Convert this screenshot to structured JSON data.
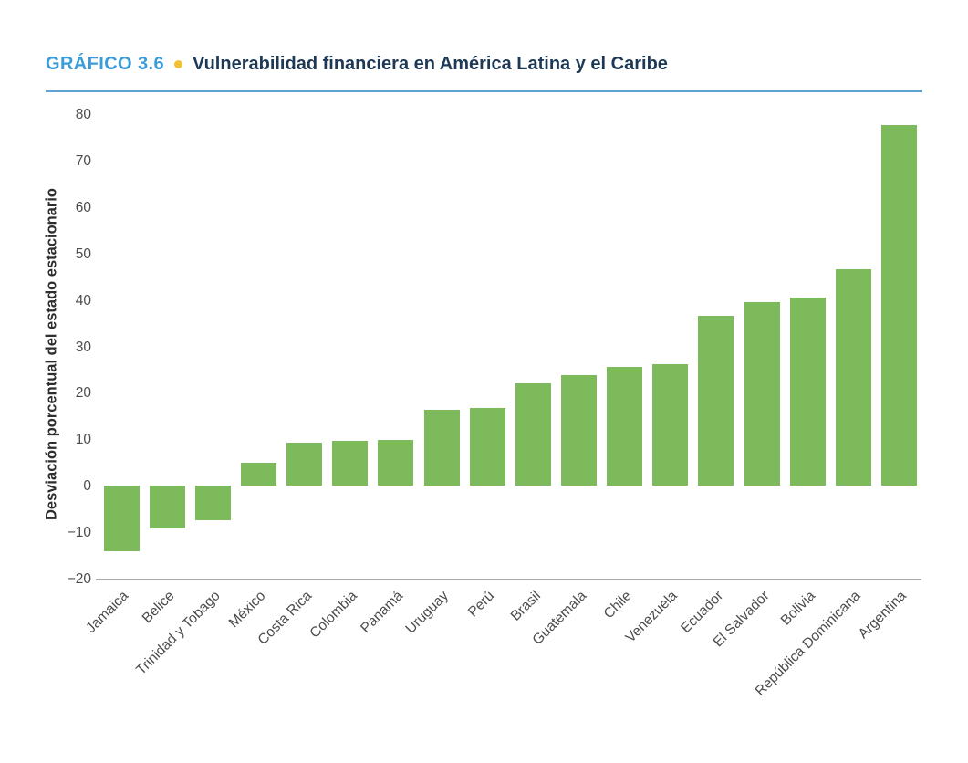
{
  "header": {
    "label": "GRÁFICO 3.6",
    "title": "Vulnerabilidad financiera en América Latina y el Caribe"
  },
  "chart_data": {
    "type": "bar",
    "title": "Vulnerabilidad financiera en América Latina y el Caribe",
    "xlabel": "",
    "ylabel": "Desviación porcentual del estado estacionario",
    "ylim": [
      -20,
      80
    ],
    "ytick_values": [
      80,
      70,
      60,
      50,
      40,
      30,
      20,
      10,
      0,
      -10,
      -20
    ],
    "ytick_labels": [
      "80",
      "70",
      "60",
      "50",
      "40",
      "30",
      "20",
      "10",
      "0",
      "−10",
      "−20"
    ],
    "grid": false,
    "legend": null,
    "bar_color": "#7cba5c",
    "categories": [
      "Jamaica",
      "Belice",
      "Trinidad y Tobago",
      "México",
      "Costa Rica",
      "Colombia",
      "Panamá",
      "Uruguay",
      "Perú",
      "Brasil",
      "Guatemala",
      "Chile",
      "Venezuela",
      "Ecuador",
      "El Salvador",
      "Bolivia",
      "República Dominicana",
      "Argentina"
    ],
    "values": [
      -14.2,
      -9.1,
      -7.4,
      4.9,
      9.3,
      9.6,
      9.8,
      16.4,
      16.7,
      22.0,
      23.9,
      25.6,
      26.2,
      36.5,
      39.6,
      40.5,
      46.6,
      77.7
    ]
  },
  "colors": {
    "figure_label_blue": "#3a9cd9",
    "title_navy": "#1e3956",
    "bullet_yellow": "#f2c234",
    "rule_blue": "#5fa3d3",
    "bar_green": "#7cba5c",
    "axis_text_gray": "#4d4d4d",
    "spine_gray": "#adadad"
  }
}
